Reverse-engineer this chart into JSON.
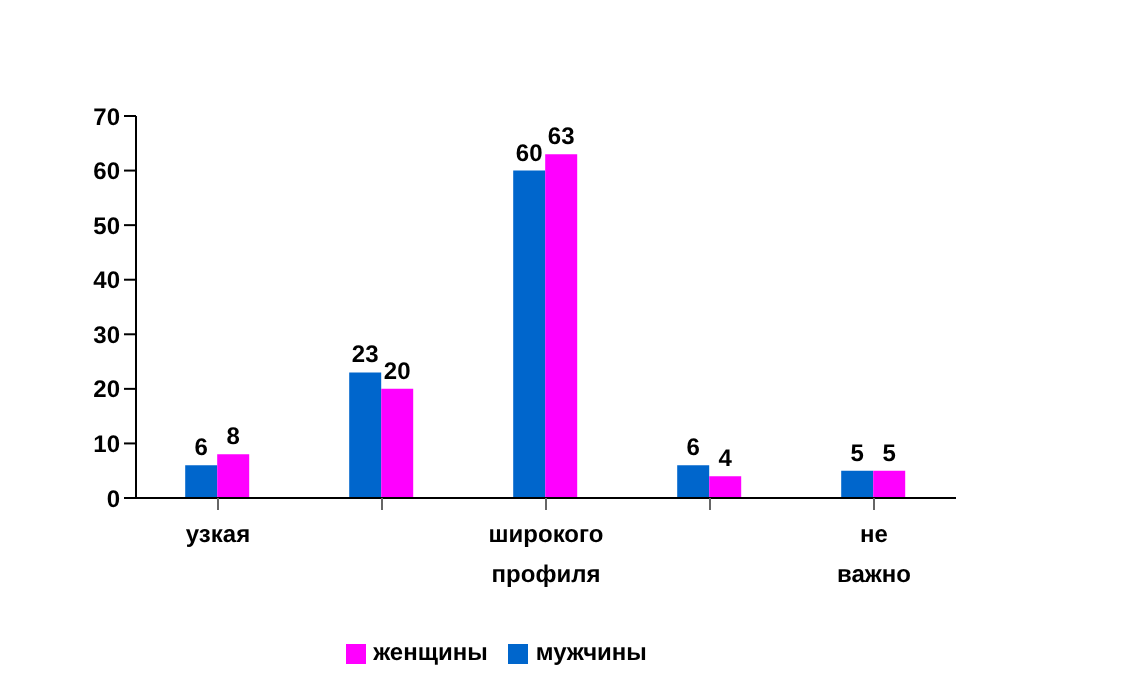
{
  "chart_data": {
    "type": "bar",
    "categories": [
      "узкая",
      null,
      "широкого профиля",
      null,
      "не важно"
    ],
    "series": [
      {
        "name": "мужчины",
        "color": "#0066cc",
        "values": [
          6,
          23,
          60,
          6,
          5
        ]
      },
      {
        "name": "женщины",
        "color": "#ff00ff",
        "values": [
          8,
          20,
          63,
          4,
          5
        ]
      }
    ],
    "ylim": [
      0,
      70
    ],
    "yticks": [
      0,
      10,
      20,
      30,
      40,
      50,
      60,
      70
    ],
    "grid": false,
    "legend": "bottom",
    "data_labels": true
  }
}
